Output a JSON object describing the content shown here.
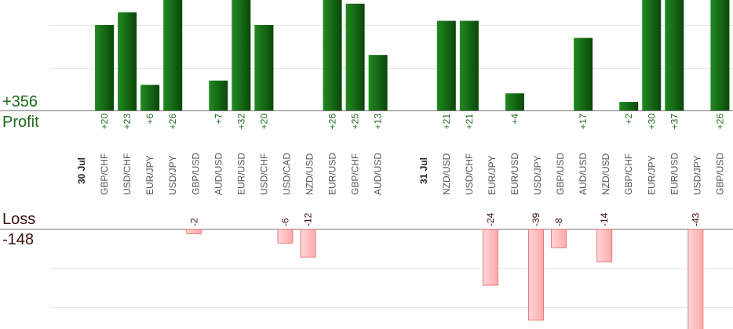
{
  "summary": {
    "profit_total": "+356",
    "profit_label": "Profit",
    "loss_label": "Loss",
    "loss_total": "-148"
  },
  "colors": {
    "profit_bar_dark": "#0d4d0d",
    "profit_bar_light": "#1f8a1f",
    "loss_bar_fill": "#ffc0c0",
    "loss_bar_edge": "#e87c7c",
    "profit_text": "#1e6b1e",
    "loss_text": "#3b0f0f",
    "date_text": "#222222",
    "category_text": "#555555",
    "grid": "#e8e8e8",
    "baseline": "#777777"
  },
  "chart_data": {
    "type": "bar",
    "title": "",
    "xlabel": "",
    "ylabel": "",
    "grid": true,
    "dates": [
      {
        "label": "30 Jul",
        "slot": 0
      },
      {
        "label": "31 Jul",
        "slot": 15
      }
    ],
    "categories": [
      "GBP/CHF",
      "USD/CHF",
      "EUR/JPY",
      "USD/JPY",
      "GBP/USD",
      "AUD/USD",
      "EUR/USD",
      "USD/CHF",
      "USD/CAD",
      "NZD/USD",
      "EUR/USD",
      "GBP/CHF",
      "AUD/USD",
      "NZD/USD",
      "USD/CHF",
      "EUR/JPY",
      "EUR/USD",
      "USD/JPY",
      "GBP/USD",
      "AUD/USD",
      "NZD/USD",
      "GBP/CHF",
      "EUR/JPY",
      "EUR/USD",
      "USD/JPY",
      "GBP/USD"
    ],
    "slots": [
      1,
      2,
      3,
      4,
      5,
      6,
      7,
      8,
      9,
      10,
      11,
      12,
      13,
      16,
      17,
      18,
      19,
      20,
      21,
      22,
      23,
      24,
      25,
      26,
      27,
      28
    ],
    "series": [
      {
        "values": [
          20,
          23,
          6,
          26,
          null,
          7,
          32,
          20,
          null,
          null,
          26,
          25,
          13,
          21,
          21,
          null,
          4,
          null,
          null,
          17,
          null,
          2,
          30,
          37,
          null,
          26
        ],
        "labels": [
          "+20",
          "+23",
          "+6",
          "+26",
          "",
          "+7",
          "+32",
          "+20",
          "",
          "",
          "+26",
          "+25",
          "+13",
          "+21",
          "+21",
          "",
          "+4",
          "",
          "",
          "+17",
          "",
          "+2",
          "+30",
          "+37",
          "",
          "+26"
        ]
      },
      {
        "values": [
          null,
          null,
          null,
          null,
          -2,
          null,
          null,
          null,
          -6,
          -12,
          null,
          null,
          null,
          null,
          null,
          -24,
          null,
          -39,
          -8,
          null,
          -14,
          null,
          null,
          null,
          -43,
          null
        ],
        "labels": [
          "",
          "",
          "",
          "",
          "-2",
          "",
          "",
          "",
          "-6",
          "-12",
          "",
          "",
          "",
          "",
          "",
          "-24",
          "",
          "-39",
          "-8",
          "",
          "-14",
          "",
          "",
          "",
          "-43",
          ""
        ]
      }
    ]
  }
}
